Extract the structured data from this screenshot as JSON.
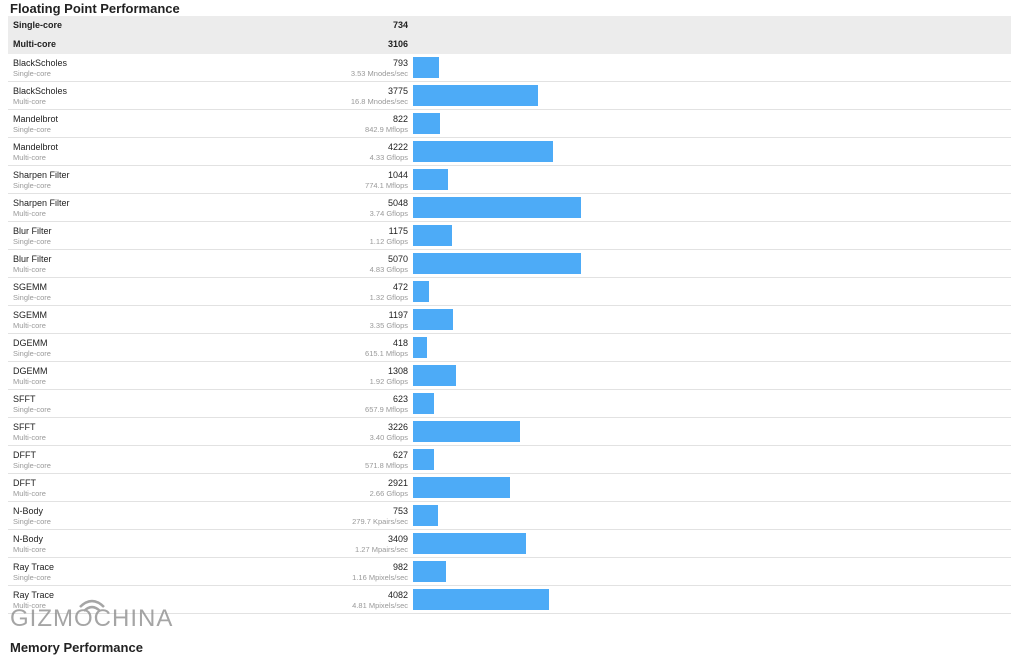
{
  "section": {
    "title": "Floating Point Performance",
    "summary": [
      {
        "label": "Single-core",
        "score": "734"
      },
      {
        "label": "Multi-core",
        "score": "3106"
      }
    ],
    "rows": [
      {
        "name": "BlackScholes",
        "core": "Single-core",
        "score": "793",
        "unit": "3.53 Mnodes/sec",
        "value": 793
      },
      {
        "name": "BlackScholes",
        "core": "Multi-core",
        "score": "3775",
        "unit": "16.8 Mnodes/sec",
        "value": 3775
      },
      {
        "name": "Mandelbrot",
        "core": "Single-core",
        "score": "822",
        "unit": "842.9 Mflops",
        "value": 822
      },
      {
        "name": "Mandelbrot",
        "core": "Multi-core",
        "score": "4222",
        "unit": "4.33 Gflops",
        "value": 4222
      },
      {
        "name": "Sharpen Filter",
        "core": "Single-core",
        "score": "1044",
        "unit": "774.1 Mflops",
        "value": 1044
      },
      {
        "name": "Sharpen Filter",
        "core": "Multi-core",
        "score": "5048",
        "unit": "3.74 Gflops",
        "value": 5048
      },
      {
        "name": "Blur Filter",
        "core": "Single-core",
        "score": "1175",
        "unit": "1.12 Gflops",
        "value": 1175
      },
      {
        "name": "Blur Filter",
        "core": "Multi-core",
        "score": "5070",
        "unit": "4.83 Gflops",
        "value": 5070
      },
      {
        "name": "SGEMM",
        "core": "Single-core",
        "score": "472",
        "unit": "1.32 Gflops",
        "value": 472
      },
      {
        "name": "SGEMM",
        "core": "Multi-core",
        "score": "1197",
        "unit": "3.35 Gflops",
        "value": 1197
      },
      {
        "name": "DGEMM",
        "core": "Single-core",
        "score": "418",
        "unit": "615.1 Mflops",
        "value": 418
      },
      {
        "name": "DGEMM",
        "core": "Multi-core",
        "score": "1308",
        "unit": "1.92 Gflops",
        "value": 1308
      },
      {
        "name": "SFFT",
        "core": "Single-core",
        "score": "623",
        "unit": "657.9 Mflops",
        "value": 623
      },
      {
        "name": "SFFT",
        "core": "Multi-core",
        "score": "3226",
        "unit": "3.40 Gflops",
        "value": 3226
      },
      {
        "name": "DFFT",
        "core": "Single-core",
        "score": "627",
        "unit": "571.8 Mflops",
        "value": 627
      },
      {
        "name": "DFFT",
        "core": "Multi-core",
        "score": "2921",
        "unit": "2.66 Gflops",
        "value": 2921
      },
      {
        "name": "N-Body",
        "core": "Single-core",
        "score": "753",
        "unit": "279.7 Kpairs/sec",
        "value": 753
      },
      {
        "name": "N-Body",
        "core": "Multi-core",
        "score": "3409",
        "unit": "1.27 Mpairs/sec",
        "value": 3409
      },
      {
        "name": "Ray Trace",
        "core": "Single-core",
        "score": "982",
        "unit": "1.16 Mpixels/sec",
        "value": 982
      },
      {
        "name": "Ray Trace",
        "core": "Multi-core",
        "score": "4082",
        "unit": "4.81 Mpixels/sec",
        "value": 4082
      }
    ],
    "bar_max_value": 18000,
    "bar_color": "#4dabf7"
  },
  "watermark": {
    "text": "GIZMOCHINA"
  },
  "next_section": {
    "title": "Memory Performance"
  }
}
